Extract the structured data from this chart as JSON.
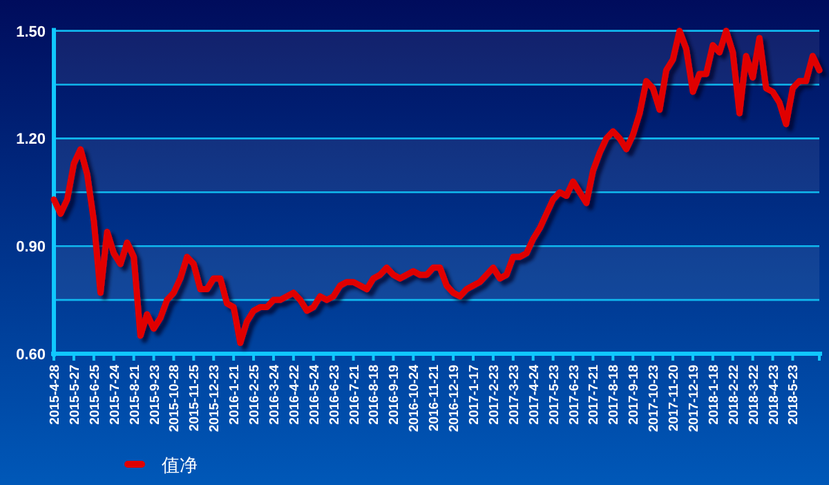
{
  "chart_data": {
    "type": "line",
    "categories": [
      "2015-4-28",
      null,
      null,
      "2015-5-27",
      null,
      null,
      "2015-6-25",
      null,
      null,
      "2015-7-24",
      null,
      null,
      "2015-8-21",
      null,
      null,
      "2015-9-23",
      null,
      null,
      "2015-10-28",
      null,
      null,
      "2015-11-25",
      null,
      null,
      "2015-12-23",
      null,
      null,
      "2016-1-21",
      null,
      null,
      "2016-2-25",
      null,
      null,
      "2016-3-24",
      null,
      null,
      "2016-4-22",
      null,
      null,
      "2016-5-24",
      null,
      null,
      "2016-6-23",
      null,
      null,
      "2016-7-21",
      null,
      null,
      "2016-8-18",
      null,
      null,
      "2016-9-19",
      null,
      null,
      "2016-10-24",
      null,
      null,
      "2016-11-21",
      null,
      null,
      "2016-12-19",
      null,
      null,
      "2017-1-17",
      null,
      null,
      "2017-2-23",
      null,
      null,
      "2017-3-23",
      null,
      null,
      "2017-4-24",
      null,
      null,
      "2017-5-23",
      null,
      null,
      "2017-6-23",
      null,
      null,
      "2017-7-21",
      null,
      null,
      "2017-8-18",
      null,
      null,
      "2017-9-18",
      null,
      null,
      "2017-10-23",
      null,
      null,
      "2017-11-20",
      null,
      null,
      "2017-12-19",
      null,
      null,
      "2018-1-18",
      null,
      null,
      "2018-2-22",
      null,
      null,
      "2018-3-22",
      null,
      null,
      "2018-4-23",
      null,
      null,
      "2018-5-23",
      null,
      null,
      null,
      null
    ],
    "series": [
      {
        "name": "值净",
        "color": "#e00000",
        "values": [
          1.03,
          0.99,
          1.03,
          1.13,
          1.17,
          1.1,
          0.97,
          0.77,
          0.94,
          0.88,
          0.85,
          0.91,
          0.87,
          0.65,
          0.71,
          0.67,
          0.7,
          0.75,
          0.77,
          0.81,
          0.87,
          0.85,
          0.78,
          0.78,
          0.81,
          0.81,
          0.74,
          0.73,
          0.63,
          0.69,
          0.72,
          0.73,
          0.73,
          0.75,
          0.75,
          0.76,
          0.77,
          0.75,
          0.72,
          0.73,
          0.76,
          0.75,
          0.76,
          0.79,
          0.8,
          0.8,
          0.79,
          0.78,
          0.81,
          0.82,
          0.84,
          0.82,
          0.81,
          0.82,
          0.83,
          0.82,
          0.82,
          0.84,
          0.84,
          0.79,
          0.77,
          0.76,
          0.78,
          0.79,
          0.8,
          0.82,
          0.84,
          0.81,
          0.82,
          0.87,
          0.87,
          0.88,
          0.92,
          0.95,
          0.99,
          1.03,
          1.05,
          1.04,
          1.08,
          1.05,
          1.02,
          1.11,
          1.16,
          1.2,
          1.22,
          1.2,
          1.17,
          1.21,
          1.27,
          1.36,
          1.34,
          1.28,
          1.39,
          1.42,
          1.5,
          1.45,
          1.33,
          1.38,
          1.38,
          1.46,
          1.44,
          1.5,
          1.44,
          1.27,
          1.43,
          1.37,
          1.48,
          1.34,
          1.33,
          1.3,
          1.24,
          1.34,
          1.36,
          1.36,
          1.43,
          1.39
        ]
      }
    ],
    "ylim": [
      0.6,
      1.5
    ],
    "yticks": [
      {
        "value": 0.6,
        "label": "0.60"
      },
      {
        "value": 0.75,
        "label": null
      },
      {
        "value": 0.9,
        "label": "0.90"
      },
      {
        "value": 1.05,
        "label": null
      },
      {
        "value": 1.2,
        "label": "1.20"
      },
      {
        "value": 1.35,
        "label": null
      },
      {
        "value": 1.5,
        "label": "1.50"
      }
    ],
    "grid": "y",
    "legend": "bottom left"
  }
}
